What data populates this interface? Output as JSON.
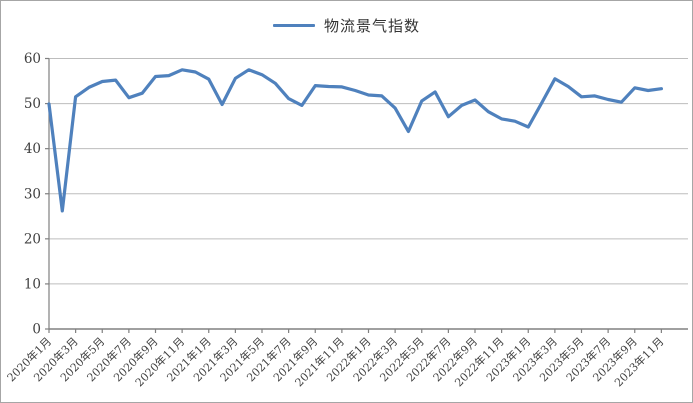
{
  "legend": {
    "label": "物流景气指数"
  },
  "style": {
    "series_color": "#4F81BD",
    "gridline_color": "#bdbdbd",
    "axis_color": "#808080",
    "label_color": "#404040",
    "frame_border_color": "#a6a6a6",
    "background": "#ffffff"
  },
  "chart_data": {
    "type": "line",
    "title": "",
    "xlabel": "",
    "ylabel": "",
    "ylim": [
      0,
      60
    ],
    "y_ticks": [
      0,
      10,
      20,
      30,
      40,
      50,
      60
    ],
    "grid": "horizontal-on",
    "legend_position": "top-center",
    "x_label_rotation": -45,
    "x_label_interval": 2,
    "categories": [
      "2020年1月",
      "2020年2月",
      "2020年3月",
      "2020年4月",
      "2020年5月",
      "2020年6月",
      "2020年7月",
      "2020年8月",
      "2020年9月",
      "2020年10月",
      "2020年11月",
      "2020年12月",
      "2021年1月",
      "2021年2月",
      "2021年3月",
      "2021年4月",
      "2021年5月",
      "2021年6月",
      "2021年7月",
      "2021年8月",
      "2021年9月",
      "2021年10月",
      "2021年11月",
      "2021年12月",
      "2022年1月",
      "2022年2月",
      "2022年3月",
      "2022年4月",
      "2022年5月",
      "2022年6月",
      "2022年7月",
      "2022年8月",
      "2022年9月",
      "2022年10月",
      "2022年11月",
      "2022年12月",
      "2023年1月",
      "2023年2月",
      "2023年3月",
      "2023年4月",
      "2023年5月",
      "2023年6月",
      "2023年7月",
      "2023年8月",
      "2023年9月",
      "2023年10月",
      "2023年11月"
    ],
    "series": [
      {
        "name": "物流景气指数",
        "values": [
          49.9,
          26.2,
          51.5,
          53.6,
          54.9,
          55.2,
          51.3,
          52.3,
          56.0,
          56.2,
          57.5,
          57.0,
          55.4,
          49.8,
          55.6,
          57.5,
          56.4,
          54.5,
          51.1,
          49.6,
          54.0,
          53.8,
          53.7,
          52.9,
          51.9,
          51.7,
          49.0,
          43.8,
          50.6,
          52.6,
          47.1,
          49.6,
          50.8,
          48.2,
          46.6,
          46.1,
          44.8,
          50.1,
          55.5,
          53.8,
          51.5,
          51.7,
          50.9,
          50.3,
          53.5,
          52.9,
          53.3
        ]
      }
    ]
  }
}
